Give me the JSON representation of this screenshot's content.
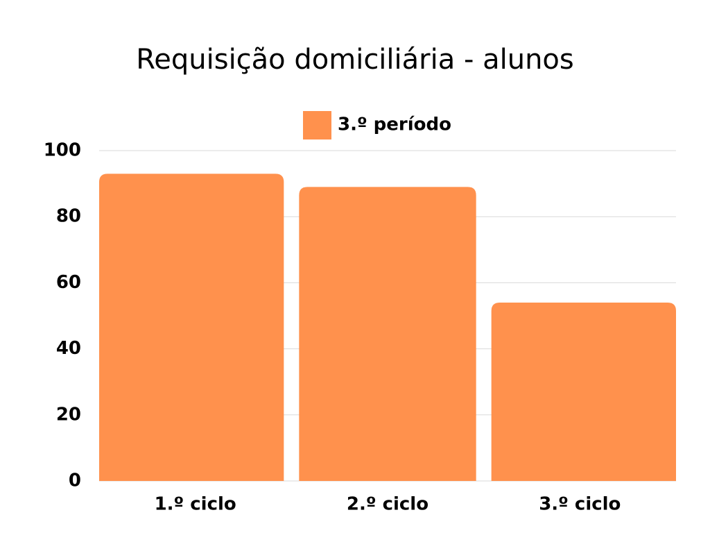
{
  "chart_data": {
    "type": "bar",
    "title": "Requisição domiciliária - alunos",
    "categories": [
      "1.º ciclo",
      "2.º ciclo",
      "3.º ciclo"
    ],
    "series": [
      {
        "name": "3.º período",
        "color": "#ff914d",
        "values": [
          93,
          89,
          54
        ]
      }
    ],
    "ylim": [
      0,
      100
    ],
    "yticks": [
      0,
      20,
      40,
      60,
      80,
      100
    ],
    "grid": true,
    "legend": "top"
  }
}
